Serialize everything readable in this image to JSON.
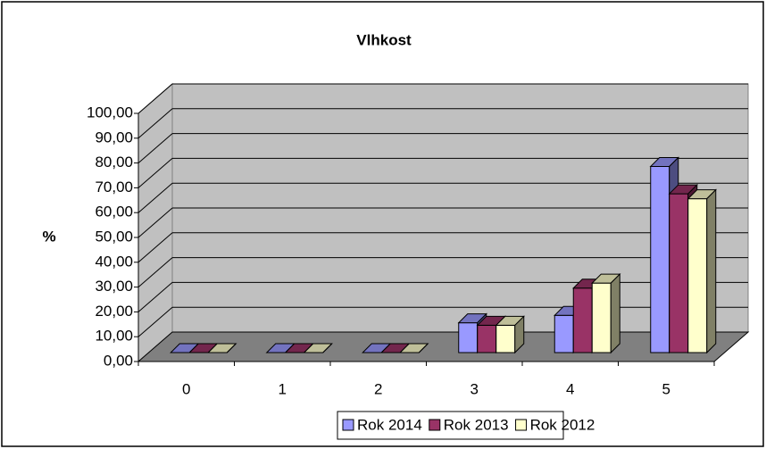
{
  "chart_data": {
    "type": "bar3d",
    "title": "Vlhkost",
    "y_label": "%",
    "categories": [
      "0",
      "1",
      "2",
      "3",
      "4",
      "5"
    ],
    "series": [
      {
        "name": "Rok 2014",
        "color": "#9999ff",
        "values": [
          0,
          0,
          0,
          12,
          15,
          75
        ]
      },
      {
        "name": "Rok 2013",
        "color": "#993366",
        "values": [
          0,
          0,
          0,
          11,
          26,
          64
        ]
      },
      {
        "name": "Rok 2012",
        "color": "#ffffcc",
        "values": [
          0,
          0,
          0,
          11,
          28,
          62
        ]
      }
    ],
    "ylim": [
      0,
      100
    ],
    "yticks": [
      {
        "value": 0,
        "label": "0,00"
      },
      {
        "value": 10,
        "label": "10,00"
      },
      {
        "value": 20,
        "label": "20,00"
      },
      {
        "value": 30,
        "label": "30,00"
      },
      {
        "value": 40,
        "label": "40,00"
      },
      {
        "value": 50,
        "label": "50,00"
      },
      {
        "value": 60,
        "label": "60,00"
      },
      {
        "value": 70,
        "label": "70,00"
      },
      {
        "value": 80,
        "label": "80,00"
      },
      {
        "value": 90,
        "label": "90,00"
      },
      {
        "value": 100,
        "label": "100,00"
      }
    ],
    "grid": true,
    "legend": "bottom"
  }
}
